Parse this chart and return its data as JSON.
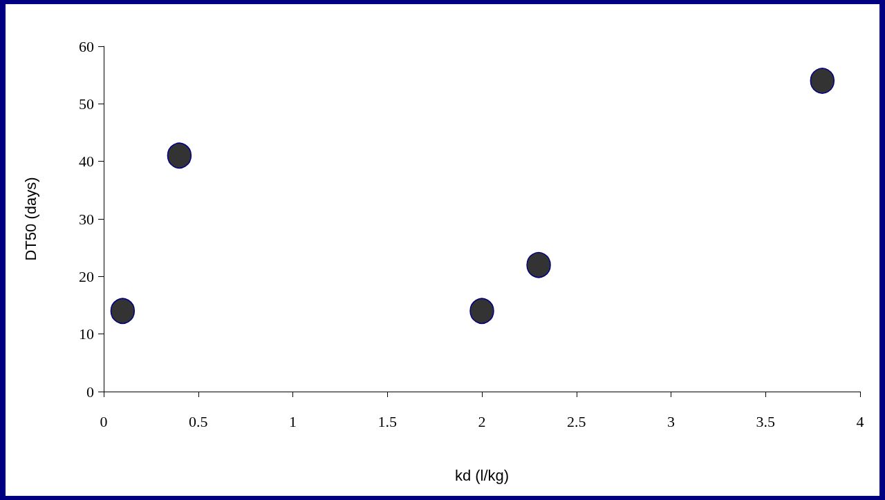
{
  "chart_data": {
    "type": "scatter",
    "xlabel": "kd (l/kg)",
    "ylabel": "DT50 (days)",
    "x": [
      0.1,
      0.4,
      2.0,
      2.3,
      3.8
    ],
    "values": [
      14,
      41,
      14,
      22,
      54
    ],
    "color": "#333333",
    "marker": "circle",
    "grid": false,
    "xlim": [
      0,
      4
    ],
    "xticks": [
      0,
      0.5,
      1,
      1.5,
      2,
      2.5,
      3,
      3.5,
      4
    ],
    "ylim": [
      0,
      60
    ],
    "yticks": [
      0,
      10,
      20,
      30,
      40,
      50,
      60
    ]
  }
}
